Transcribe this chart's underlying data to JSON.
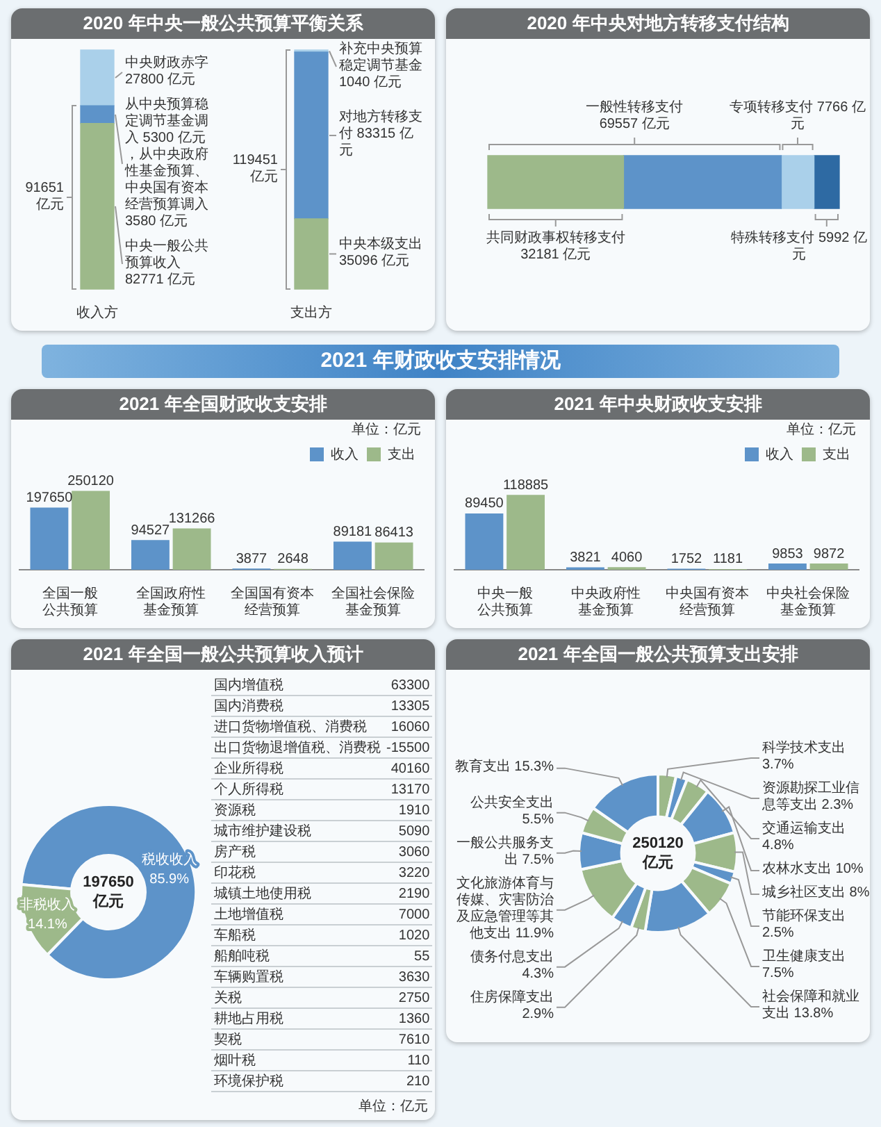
{
  "chart_data": [
    {
      "type": "bar",
      "title": "2020 年中央一般公共预算平衡关系",
      "categories": [
        "收入方",
        "支出方"
      ],
      "stacked": true,
      "tick_labels": "x",
      "series": [
        {
          "color": "#9db98a",
          "values": [
            82771,
            35096
          ],
          "value_labels": [
            "中央一般公共预算收入 82771 亿元",
            "中央本级支出 35096 亿元"
          ]
        },
        {
          "color": "#5d93c9",
          "values": [
            8880,
            83315
          ],
          "value_labels": [
            "从中央预算稳定调节基金调入 5300 亿元，从中央政府性基金预算、中央国有资本经营预算调入 3580 亿元",
            "对地方转移支付 83315 亿元"
          ]
        },
        {
          "color": "#aad0ea",
          "values": [
            27800,
            1040
          ],
          "value_labels": [
            "中央财政赤字 27800 亿元",
            "补充中央预算稳定调节基金 1040 亿元"
          ]
        }
      ],
      "annotations": [
        "91651 亿元",
        "119451 亿元"
      ]
    },
    {
      "type": "bar",
      "orientation": "horizontal",
      "stacked": true,
      "title": "2020 年中央对地方转移支付结构",
      "categories": [
        null
      ],
      "tick_labels": false,
      "series": [
        {
          "color": "#9db98a",
          "values": [
            32181
          ],
          "value_labels": [
            "共同财政事权转移支付 32181 亿元"
          ]
        },
        {
          "color": "#5d93c9",
          "values": [
            37376
          ]
        },
        {
          "color": "#aad0ea",
          "values": [
            7766
          ],
          "value_labels": [
            "专项转移支付 7766 亿元"
          ]
        },
        {
          "color": "#2e6aa3",
          "values": [
            5992
          ],
          "value_labels": [
            "特殊转移支付 5992 亿元"
          ]
        }
      ],
      "annotations": [
        "一般性转移支付 69557 亿元"
      ]
    },
    {
      "type": "bar",
      "title": "2021 年全国财政收支安排",
      "subtitle": "2021 年财政收支安排情况",
      "categories": [
        "全国一般公共预算",
        "全国政府性基金预算",
        "全国国有资本经营预算",
        "全国社会保险基金预算"
      ],
      "series": [
        {
          "name": "收入",
          "color": "#5d93c9",
          "values": [
            197650,
            94527,
            3877,
            89181
          ]
        },
        {
          "name": "支出",
          "color": "#9db98a",
          "values": [
            250120,
            131266,
            2648,
            86413
          ]
        }
      ],
      "data_labels": true,
      "legend": "top right",
      "tick_labels": "x",
      "annotations": [
        "单位：亿元"
      ]
    },
    {
      "type": "bar",
      "title": "2021 年中央财政收支安排",
      "categories": [
        "中央一般公共预算",
        "中央政府性基金预算",
        "中央国有资本经营预算",
        "中央社会保险基金预算"
      ],
      "series": [
        {
          "name": "收入",
          "color": "#5d93c9",
          "values": [
            89450,
            3821,
            1752,
            9853
          ]
        },
        {
          "name": "支出",
          "color": "#9db98a",
          "values": [
            118885,
            4060,
            1181,
            9872
          ]
        }
      ],
      "data_labels": true,
      "legend": "top right",
      "tick_labels": "x",
      "annotations": [
        "单位：亿元"
      ]
    },
    {
      "type": "donut",
      "title": "2021 年全国一般公共预算收入预计",
      "categories": [
        "税收收入",
        "非税收入"
      ],
      "values": [
        85.9,
        14.1
      ],
      "colors": [
        "#5d93c9",
        "#9db98a"
      ],
      "value_labels": [
        "85.9%",
        "14.1%"
      ],
      "annotations": [
        "197650 亿元"
      ]
    },
    {
      "type": "other",
      "categories": [
        "国内增值税",
        "国内消费税",
        "进口货物增值税、消费税",
        "出口货物退增值税、消费税",
        "企业所得税",
        "个人所得税",
        "资源税",
        "城市维护建设税",
        "房产税",
        "印花税",
        "城镇土地使用税",
        "土地增值税",
        "车船税",
        "船舶吨税",
        "车辆购置税",
        "关税",
        "耕地占用税",
        "契税",
        "烟叶税",
        "环境保护税"
      ],
      "values": [
        63300,
        13305,
        16060,
        -15500,
        40160,
        13170,
        1910,
        5090,
        3060,
        3220,
        2190,
        7000,
        1020,
        55,
        3630,
        2750,
        1360,
        7610,
        110,
        210
      ],
      "data_labels": true,
      "annotations": [
        "单位：亿元"
      ]
    },
    {
      "type": "donut",
      "title": "2021 年全国一般公共预算支出安排",
      "categories": [
        "科学技术支出",
        "资源勘探工业信息等支出",
        "交通运输支出",
        "农林水支出",
        "城乡社区支出",
        "节能环保支出",
        "卫生健康支出",
        "社会保障和就业支出",
        "住房保障支出",
        "债务付息支出",
        "文化旅游体育与传媒、灾害防治及应急管理等其他支出",
        "一般公共服务支出",
        "公共安全支出",
        "教育支出"
      ],
      "values": [
        3.7,
        2.3,
        4.8,
        10,
        8,
        2.5,
        7.5,
        13.8,
        2.9,
        4.3,
        11.9,
        7.5,
        5.5,
        15.3
      ],
      "colors": [
        "#9db98a",
        "#5d93c9",
        "#9db98a",
        "#5d93c9",
        "#9db98a",
        "#5d93c9",
        "#9db98a",
        "#5d93c9",
        "#9db98a",
        "#5d93c9",
        "#9db98a",
        "#5d93c9",
        "#9db98a",
        "#5d93c9"
      ],
      "value_labels": [
        "3.7%",
        "2.3%",
        "4.8%",
        "10%",
        "8%",
        "2.5%",
        "7.5%",
        "13.8%",
        "2.9%",
        "4.3%",
        "11.9%",
        "7.5%",
        "5.5%",
        "15.3%"
      ],
      "annotations": [
        "250120 亿元"
      ]
    }
  ]
}
